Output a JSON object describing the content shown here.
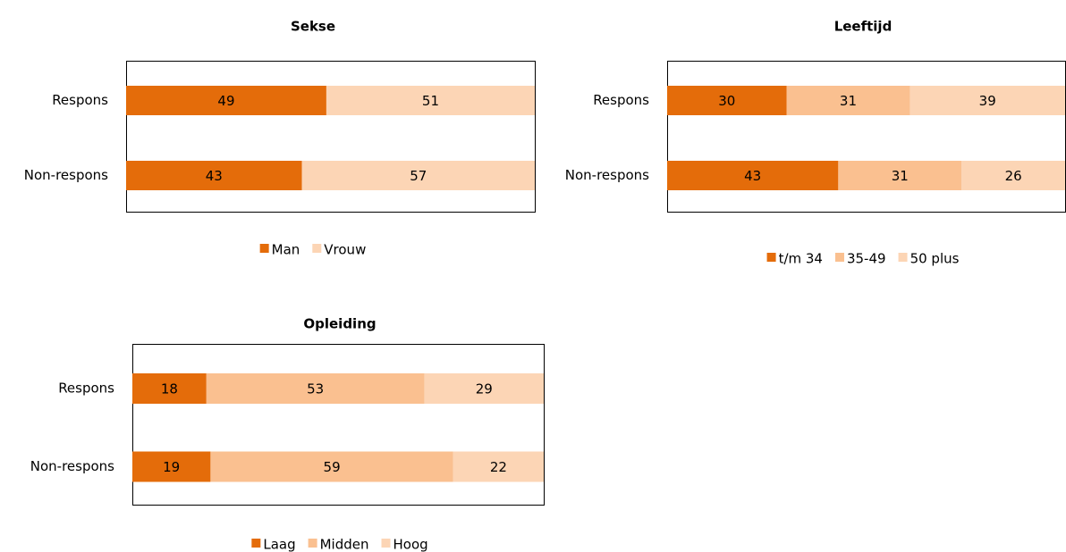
{
  "chart_data": [
    {
      "type": "bar",
      "orientation": "horizontal",
      "stacked": true,
      "title": "Sekse",
      "categories": [
        "Respons",
        "Non-respons"
      ],
      "xlim": [
        0,
        100
      ],
      "series": [
        {
          "name": "Man",
          "color": "#e46c0a",
          "values": [
            49,
            43
          ]
        },
        {
          "name": "Vrouw",
          "color": "#fcd5b5",
          "values": [
            51,
            57
          ]
        }
      ]
    },
    {
      "type": "bar",
      "orientation": "horizontal",
      "stacked": true,
      "title": "Leeftijd",
      "categories": [
        "Respons",
        "Non-respons"
      ],
      "xlim": [
        0,
        100
      ],
      "series": [
        {
          "name": "t/m 34",
          "color": "#e46c0a",
          "values": [
            30,
            43
          ]
        },
        {
          "name": "35-49",
          "color": "#fac090",
          "values": [
            31,
            31
          ]
        },
        {
          "name": "50 plus",
          "color": "#fcd5b5",
          "values": [
            39,
            26
          ]
        }
      ]
    },
    {
      "type": "bar",
      "orientation": "horizontal",
      "stacked": true,
      "title": "Opleiding",
      "categories": [
        "Respons",
        "Non-respons"
      ],
      "xlim": [
        0,
        100
      ],
      "series": [
        {
          "name": "Laag",
          "color": "#e46c0a",
          "values": [
            18,
            19
          ]
        },
        {
          "name": "Midden",
          "color": "#fac090",
          "values": [
            53,
            59
          ]
        },
        {
          "name": "Hoog",
          "color": "#fcd5b5",
          "values": [
            29,
            22
          ]
        }
      ]
    }
  ]
}
